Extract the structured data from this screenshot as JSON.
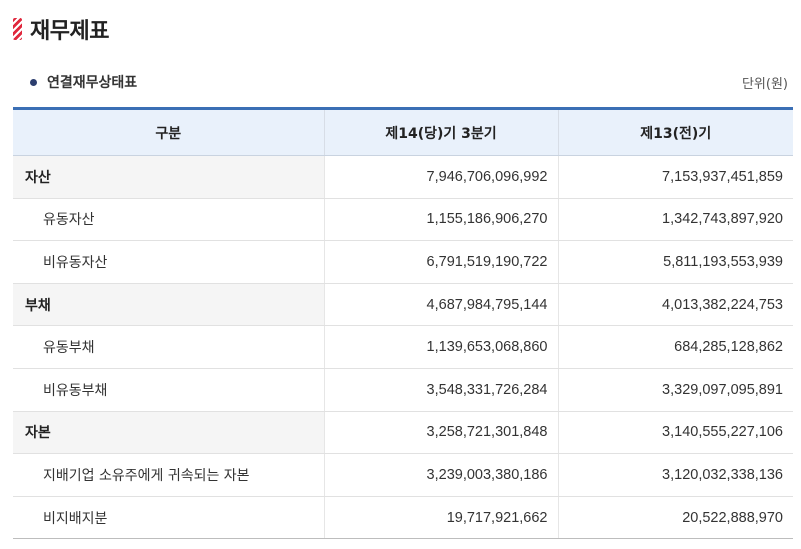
{
  "page": {
    "title": "재무제표",
    "subtitle": "연결재무상태표",
    "unit": "단위(원)"
  },
  "table": {
    "headers": [
      "구분",
      "제14(당)기 3분기",
      "제13(전)기"
    ],
    "rows": [
      {
        "label": "자산",
        "current": "7,946,706,096,992",
        "previous": "7,153,937,451,859",
        "major": true
      },
      {
        "label": "유동자산",
        "current": "1,155,186,906,270",
        "previous": "1,342,743,897,920",
        "major": false
      },
      {
        "label": "비유동자산",
        "current": "6,791,519,190,722",
        "previous": "5,811,193,553,939",
        "major": false
      },
      {
        "label": "부채",
        "current": "4,687,984,795,144",
        "previous": "4,013,382,224,753",
        "major": true
      },
      {
        "label": "유동부채",
        "current": "1,139,653,068,860",
        "previous": "684,285,128,862",
        "major": false
      },
      {
        "label": "비유동부채",
        "current": "3,548,331,726,284",
        "previous": "3,329,097,095,891",
        "major": false
      },
      {
        "label": "자본",
        "current": "3,258,721,301,848",
        "previous": "3,140,555,227,106",
        "major": true
      },
      {
        "label": "지배기업 소유주에게 귀속되는 자본",
        "current": "3,239,003,380,186",
        "previous": "3,120,032,338,136",
        "major": false
      },
      {
        "label": "비지배지분",
        "current": "19,717,921,662",
        "previous": "20,522,888,970",
        "major": false
      }
    ]
  },
  "colors": {
    "accent_red": "#e0283d",
    "header_border": "#3b6fb5",
    "header_bg": "#e9f1fb"
  },
  "icons": {
    "title_marker": "striped-marker-icon",
    "sub_bullet": "bullet-dot-icon"
  }
}
